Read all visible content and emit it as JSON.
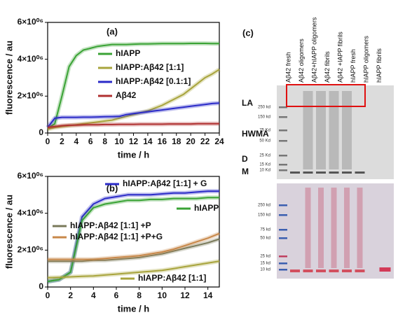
{
  "chart_data": [
    {
      "type": "line",
      "panel_label": "(a)",
      "x_label": "time / h",
      "y_label": "fluorescence / au",
      "xlim": [
        0,
        24
      ],
      "xticks": [
        0,
        2,
        4,
        6,
        8,
        10,
        12,
        14,
        16,
        18,
        20,
        22,
        24
      ],
      "ylim": [
        0,
        6000000
      ],
      "yticks": [
        0,
        {
          "value": 2000000,
          "label": "2×10⁰⁶"
        },
        {
          "value": 4000000,
          "label": "4×10⁰⁶"
        },
        {
          "value": 6000000,
          "label": "6×10⁰⁶"
        }
      ],
      "x": [
        0,
        1,
        2,
        3,
        4,
        5,
        6,
        7,
        8,
        9,
        10,
        11,
        12,
        13,
        14,
        15,
        16,
        17,
        18,
        19,
        20,
        21,
        22,
        23,
        24
      ],
      "series": [
        {
          "name": "hIAPP",
          "color": "#3aa335",
          "values": [
            250000,
            500000,
            2000000,
            3600000,
            4200000,
            4500000,
            4600000,
            4700000,
            4750000,
            4800000,
            4800000,
            4800000,
            4820000,
            4830000,
            4830000,
            4840000,
            4850000,
            4850000,
            4850000,
            4850000,
            4860000,
            4860000,
            4860000,
            4850000,
            4850000
          ]
        },
        {
          "name": "hIAPP:Aβ42 [1:1]",
          "color": "#a8a43c",
          "values": [
            200000,
            300000,
            350000,
            400000,
            450000,
            500000,
            550000,
            600000,
            650000,
            700000,
            800000,
            900000,
            1000000,
            1100000,
            1200000,
            1350000,
            1500000,
            1700000,
            1900000,
            2100000,
            2400000,
            2700000,
            3000000,
            3200000,
            3450000
          ]
        },
        {
          "name": "hIAPP:Aβ42 [0.1:1]",
          "color": "#2b2bc8",
          "values": [
            300000,
            800000,
            850000,
            850000,
            850000,
            860000,
            860000,
            870000,
            880000,
            890000,
            900000,
            1000000,
            1050000,
            1100000,
            1150000,
            1200000,
            1250000,
            1300000,
            1350000,
            1400000,
            1450000,
            1500000,
            1550000,
            1600000,
            1620000
          ]
        },
        {
          "name": "Aβ42",
          "color": "#b03030",
          "values": [
            300000,
            350000,
            400000,
            420000,
            430000,
            440000,
            450000,
            450000,
            460000,
            460000,
            470000,
            470000,
            470000,
            480000,
            480000,
            480000,
            480000,
            490000,
            490000,
            490000,
            490000,
            500000,
            500000,
            500000,
            500000
          ]
        }
      ]
    },
    {
      "type": "line",
      "panel_label": "(b)",
      "x_label": "time / h",
      "y_label": "fluorescence / au",
      "xlim": [
        0,
        15
      ],
      "xticks": [
        0,
        2,
        4,
        6,
        8,
        10,
        12,
        14
      ],
      "ylim": [
        0,
        6000000
      ],
      "yticks": [
        0,
        {
          "value": 2000000,
          "label": "2×10⁰⁶"
        },
        {
          "value": 4000000,
          "label": "4×10⁰⁶"
        },
        {
          "value": 6000000,
          "label": "6×10⁰⁶"
        }
      ],
      "x": [
        0,
        1,
        2,
        3,
        4,
        5,
        6,
        7,
        8,
        9,
        10,
        11,
        12,
        13,
        14,
        15
      ],
      "series": [
        {
          "name": "hIAPP:Aβ42 [1:1] + G",
          "color": "#2b2bc8",
          "values": [
            300000,
            400000,
            800000,
            3800000,
            4500000,
            4800000,
            4900000,
            5000000,
            5000000,
            5000000,
            5050000,
            5100000,
            5100000,
            5150000,
            5200000,
            5200000
          ]
        },
        {
          "name": "hIAPP",
          "color": "#3aa335",
          "values": [
            300000,
            400000,
            800000,
            3600000,
            4300000,
            4500000,
            4600000,
            4700000,
            4700000,
            4750000,
            4750000,
            4800000,
            4800000,
            4800000,
            4850000,
            4850000
          ]
        },
        {
          "name": "hIAPP:Aβ42 [1:1] +P",
          "color": "#7a7a5a",
          "values": [
            1400000,
            1400000,
            1400000,
            1400000,
            1450000,
            1450000,
            1500000,
            1550000,
            1600000,
            1700000,
            1800000,
            1950000,
            2100000,
            2250000,
            2400000,
            2600000
          ]
        },
        {
          "name": "hIAPP:Aβ42 [1:1] +P+G",
          "color": "#c8884a",
          "values": [
            1500000,
            1500000,
            1500000,
            1500000,
            1500000,
            1550000,
            1600000,
            1650000,
            1700000,
            1800000,
            1900000,
            2050000,
            2250000,
            2450000,
            2650000,
            2900000
          ]
        },
        {
          "name": "hIAPP:Aβ42 [1:1]",
          "color": "#a8a43c",
          "values": [
            500000,
            520000,
            550000,
            580000,
            600000,
            650000,
            700000,
            750000,
            800000,
            850000,
            900000,
            1000000,
            1100000,
            1200000,
            1300000,
            1400000
          ]
        }
      ]
    }
  ],
  "gel": {
    "panel_label": "(c)",
    "lanes": [
      "Aβ42 fresh",
      "Aβ42 oligomers",
      "Aβ42+hIAPP oligomers",
      "Aβ42 fibrils",
      "Aβ42 +IAPP fibrils",
      "hIAPP fresh",
      "hIAPP oligomers",
      "hIAPP fibrils"
    ],
    "side_labels": [
      "LA",
      "HWMA",
      "D",
      "M"
    ],
    "top_markers": [
      "250 kd",
      "150 kd",
      "75 Kd",
      "50 Kd",
      "25 Kd",
      "15 Kd",
      "10 Kd"
    ],
    "bottom_markers": [
      "250 kd",
      "150 kd",
      "75 kd",
      "50 kd",
      "25 kd",
      "15 kd",
      "10 kd"
    ]
  }
}
